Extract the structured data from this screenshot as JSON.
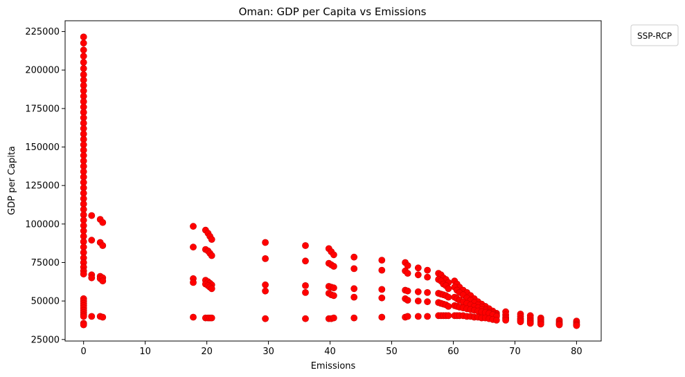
{
  "chart_data": {
    "type": "scatter",
    "title": "Oman: GDP per Capita vs Emissions",
    "xlabel": "Emissions",
    "ylabel": "GDP per Capita",
    "xlim": [
      -3,
      84
    ],
    "ylim": [
      24000,
      232000
    ],
    "xticks": [
      0,
      10,
      20,
      30,
      40,
      50,
      60,
      70,
      80
    ],
    "yticks": [
      25000,
      50000,
      75000,
      100000,
      125000,
      150000,
      175000,
      200000,
      225000
    ],
    "grid": false,
    "legend": {
      "title": "SSP-RCP",
      "placement": "outside-top-right",
      "entries": []
    },
    "marker_color": "#ff0000",
    "marker_edge_color": "#cc0000",
    "series": [
      {
        "points": [
          [
            0,
            221500
          ],
          [
            0,
            217500
          ],
          [
            0,
            213000
          ],
          [
            0,
            209000
          ],
          [
            0,
            205000
          ],
          [
            0,
            201000
          ],
          [
            0,
            197000
          ],
          [
            0,
            193500
          ],
          [
            0,
            190000
          ],
          [
            0,
            186500
          ],
          [
            0,
            183000
          ],
          [
            0,
            179500
          ],
          [
            0,
            176000
          ],
          [
            0,
            172500
          ],
          [
            0,
            169000
          ],
          [
            0,
            165500
          ],
          [
            0,
            162000
          ],
          [
            0,
            158500
          ],
          [
            0,
            155000
          ],
          [
            0,
            151500
          ],
          [
            0,
            148000
          ],
          [
            0,
            144500
          ],
          [
            0,
            141000
          ],
          [
            0,
            137500
          ],
          [
            0,
            134000
          ],
          [
            0,
            130500
          ],
          [
            0,
            127000
          ],
          [
            0,
            123500
          ],
          [
            0,
            120000
          ],
          [
            0,
            116500
          ],
          [
            0,
            113000
          ],
          [
            0,
            109500
          ],
          [
            0,
            106000
          ],
          [
            0,
            102500
          ],
          [
            0,
            99000
          ],
          [
            0,
            95500
          ],
          [
            0,
            92000
          ],
          [
            0,
            88500
          ],
          [
            0,
            85000
          ],
          [
            0,
            81500
          ],
          [
            0,
            78000
          ],
          [
            0,
            75000
          ],
          [
            0,
            72000
          ],
          [
            0,
            69500
          ],
          [
            0,
            67500
          ],
          [
            0,
            51500
          ],
          [
            0,
            50000
          ],
          [
            0,
            48500
          ],
          [
            0,
            47000
          ],
          [
            0,
            45500
          ],
          [
            0,
            44000
          ],
          [
            0,
            42500
          ],
          [
            0,
            41000
          ],
          [
            0,
            40000
          ],
          [
            0,
            35500
          ],
          [
            0,
            34500
          ],
          [
            1.3,
            105500
          ],
          [
            1.3,
            89500
          ],
          [
            1.3,
            67000
          ],
          [
            1.3,
            65000
          ],
          [
            1.3,
            40000
          ],
          [
            2.7,
            103000
          ],
          [
            2.7,
            88000
          ],
          [
            2.7,
            66000
          ],
          [
            2.7,
            64500
          ],
          [
            2.7,
            40000
          ],
          [
            3.1,
            101000
          ],
          [
            3.1,
            86000
          ],
          [
            3.1,
            65000
          ],
          [
            3.1,
            63000
          ],
          [
            3.1,
            39500
          ],
          [
            17.8,
            98500
          ],
          [
            17.8,
            85000
          ],
          [
            17.8,
            64500
          ],
          [
            17.8,
            62000
          ],
          [
            17.8,
            39500
          ],
          [
            19.8,
            96000
          ],
          [
            20.2,
            94000
          ],
          [
            20.5,
            92000
          ],
          [
            20.8,
            90000
          ],
          [
            19.8,
            83500
          ],
          [
            20.2,
            82500
          ],
          [
            20.5,
            81000
          ],
          [
            20.8,
            79500
          ],
          [
            19.8,
            63500
          ],
          [
            20.2,
            62500
          ],
          [
            20.5,
            61500
          ],
          [
            20.8,
            60500
          ],
          [
            19.8,
            61000
          ],
          [
            20.2,
            60000
          ],
          [
            20.5,
            59000
          ],
          [
            20.8,
            58000
          ],
          [
            19.8,
            39000
          ],
          [
            20.2,
            39000
          ],
          [
            20.5,
            39000
          ],
          [
            20.8,
            39000
          ],
          [
            29.5,
            88000
          ],
          [
            29.5,
            77500
          ],
          [
            29.5,
            60500
          ],
          [
            29.5,
            56500
          ],
          [
            29.5,
            38500
          ],
          [
            36,
            86000
          ],
          [
            36,
            76000
          ],
          [
            36,
            60000
          ],
          [
            36,
            55500
          ],
          [
            36,
            38500
          ],
          [
            39.8,
            84000
          ],
          [
            40.2,
            82000
          ],
          [
            40.6,
            80000
          ],
          [
            39.8,
            74500
          ],
          [
            40.2,
            73500
          ],
          [
            40.6,
            72500
          ],
          [
            39.8,
            59500
          ],
          [
            40.2,
            59000
          ],
          [
            40.6,
            58500
          ],
          [
            39.8,
            55000
          ],
          [
            40.2,
            54000
          ],
          [
            40.6,
            53500
          ],
          [
            39.8,
            38500
          ],
          [
            40.2,
            38500
          ],
          [
            40.6,
            39000
          ],
          [
            43.9,
            78500
          ],
          [
            43.9,
            71000
          ],
          [
            43.9,
            58000
          ],
          [
            43.9,
            52500
          ],
          [
            43.9,
            39000
          ],
          [
            48.4,
            76500
          ],
          [
            48.4,
            70000
          ],
          [
            48.4,
            57500
          ],
          [
            48.4,
            52000
          ],
          [
            48.4,
            39500
          ],
          [
            52.2,
            75000
          ],
          [
            52.6,
            73000
          ],
          [
            52.2,
            69500
          ],
          [
            52.6,
            68000
          ],
          [
            52.2,
            57000
          ],
          [
            52.6,
            56500
          ],
          [
            52.2,
            51500
          ],
          [
            52.6,
            50500
          ],
          [
            52.2,
            39500
          ],
          [
            52.6,
            40000
          ],
          [
            54.3,
            71500
          ],
          [
            54.3,
            67000
          ],
          [
            54.3,
            56000
          ],
          [
            54.3,
            50000
          ],
          [
            54.3,
            40000
          ],
          [
            55.8,
            70000
          ],
          [
            55.8,
            65500
          ],
          [
            55.8,
            55500
          ],
          [
            55.8,
            49500
          ],
          [
            55.8,
            40000
          ],
          [
            57.6,
            68000
          ],
          [
            58,
            67000
          ],
          [
            58.4,
            65000
          ],
          [
            58.8,
            64000
          ],
          [
            59.2,
            62000
          ],
          [
            57.6,
            64000
          ],
          [
            58,
            63000
          ],
          [
            58.4,
            61000
          ],
          [
            58.8,
            60000
          ],
          [
            59.2,
            58000
          ],
          [
            57.6,
            55000
          ],
          [
            58,
            54500
          ],
          [
            58.4,
            54000
          ],
          [
            58.8,
            53500
          ],
          [
            59.2,
            52500
          ],
          [
            57.6,
            49000
          ],
          [
            58,
            48500
          ],
          [
            58.4,
            48000
          ],
          [
            58.8,
            47500
          ],
          [
            59.2,
            46500
          ],
          [
            57.6,
            40500
          ],
          [
            58,
            40500
          ],
          [
            58.4,
            40500
          ],
          [
            58.8,
            40500
          ],
          [
            59.2,
            40500
          ],
          [
            60.2,
            63000
          ],
          [
            60.6,
            61000
          ],
          [
            61,
            59000
          ],
          [
            61.6,
            57000
          ],
          [
            62.2,
            55500
          ],
          [
            62.8,
            53500
          ],
          [
            63.4,
            51500
          ],
          [
            64,
            49500
          ],
          [
            64.6,
            48000
          ],
          [
            65.2,
            46500
          ],
          [
            65.8,
            45000
          ],
          [
            66.4,
            43500
          ],
          [
            67,
            42000
          ],
          [
            60.2,
            59000
          ],
          [
            60.6,
            57000
          ],
          [
            61,
            55500
          ],
          [
            61.6,
            54000
          ],
          [
            62.2,
            52000
          ],
          [
            62.8,
            50500
          ],
          [
            63.4,
            49000
          ],
          [
            64,
            47500
          ],
          [
            64.6,
            46000
          ],
          [
            65.2,
            44500
          ],
          [
            65.8,
            43500
          ],
          [
            66.4,
            42500
          ],
          [
            67,
            41000
          ],
          [
            60.2,
            52500
          ],
          [
            60.6,
            51500
          ],
          [
            61,
            50500
          ],
          [
            61.6,
            49500
          ],
          [
            62.2,
            48500
          ],
          [
            62.8,
            47500
          ],
          [
            63.4,
            46500
          ],
          [
            64,
            45500
          ],
          [
            64.6,
            44500
          ],
          [
            65.2,
            43500
          ],
          [
            65.8,
            42500
          ],
          [
            66.4,
            41500
          ],
          [
            67,
            40500
          ],
          [
            60.2,
            47000
          ],
          [
            60.6,
            46500
          ],
          [
            61,
            46000
          ],
          [
            61.6,
            45500
          ],
          [
            62.2,
            45000
          ],
          [
            62.8,
            44500
          ],
          [
            63.4,
            44000
          ],
          [
            64,
            43500
          ],
          [
            64.6,
            43000
          ],
          [
            65.2,
            42500
          ],
          [
            65.8,
            42000
          ],
          [
            66.4,
            41000
          ],
          [
            67,
            40000
          ],
          [
            60.2,
            40500
          ],
          [
            60.6,
            40500
          ],
          [
            61,
            40500
          ],
          [
            61.6,
            40500
          ],
          [
            62.2,
            40000
          ],
          [
            62.8,
            40000
          ],
          [
            63.4,
            39500
          ],
          [
            64,
            39500
          ],
          [
            64.6,
            39000
          ],
          [
            65.2,
            39000
          ],
          [
            65.8,
            38500
          ],
          [
            66.4,
            38000
          ],
          [
            67,
            37500
          ],
          [
            68.5,
            43000
          ],
          [
            68.5,
            41000
          ],
          [
            68.5,
            39500
          ],
          [
            68.5,
            38500
          ],
          [
            68.5,
            37500
          ],
          [
            70.9,
            41500
          ],
          [
            70.9,
            40000
          ],
          [
            70.9,
            38500
          ],
          [
            70.9,
            37500
          ],
          [
            70.9,
            36500
          ],
          [
            72.5,
            40500
          ],
          [
            72.5,
            39000
          ],
          [
            72.5,
            37500
          ],
          [
            72.5,
            36500
          ],
          [
            72.5,
            35500
          ],
          [
            74.2,
            39000
          ],
          [
            74.2,
            38000
          ],
          [
            74.2,
            37000
          ],
          [
            74.2,
            36000
          ],
          [
            74.2,
            35000
          ],
          [
            77.2,
            37500
          ],
          [
            77.2,
            36500
          ],
          [
            77.2,
            35500
          ],
          [
            77.2,
            35000
          ],
          [
            77.2,
            34500
          ],
          [
            80,
            37000
          ],
          [
            80,
            36000
          ],
          [
            80,
            35000
          ],
          [
            80,
            34500
          ],
          [
            80,
            34000
          ]
        ]
      }
    ]
  }
}
